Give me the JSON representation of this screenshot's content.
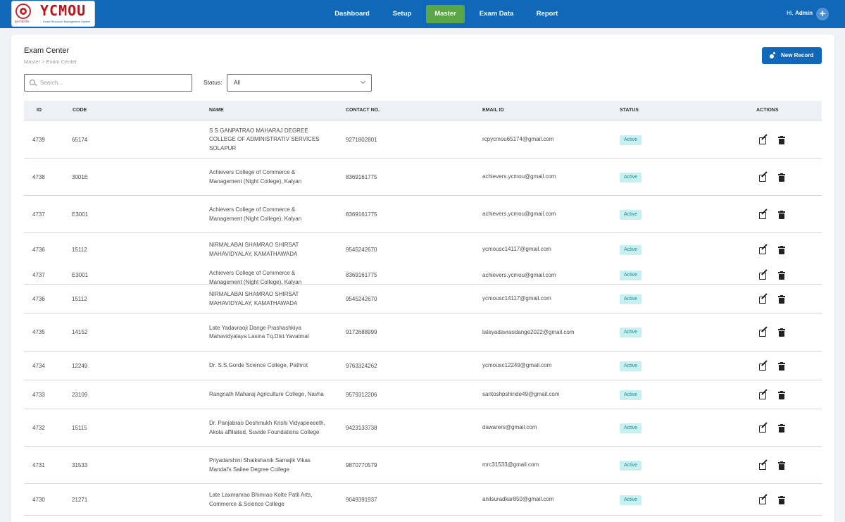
{
  "app": {
    "logo_text": "YCMOU",
    "logo_subtext": "मुक्त विद्यापीठ",
    "logo_tagline": "Exam Resource Management System"
  },
  "nav": {
    "items": [
      {
        "label": "Dashboard"
      },
      {
        "label": "Setup"
      },
      {
        "label": "Master"
      },
      {
        "label": "Exam Data"
      },
      {
        "label": "Report"
      }
    ],
    "active": "Master",
    "greeting": "Hi,",
    "user": "Admin"
  },
  "page": {
    "title": "Exam Center",
    "breadcrumb": "Master > Exam Center",
    "new_record_label": "New Record"
  },
  "filters": {
    "search_placeholder": "Search...",
    "status_label": "Status:",
    "status_value": "All"
  },
  "table": {
    "headers": {
      "id": "ID",
      "code": "CODE",
      "name": "NAME",
      "contact": "CONTACT NO.",
      "email": "EMAIL ID",
      "status": "STATUS",
      "actions": "ACTIONS"
    },
    "rows": [
      {
        "id": "4739",
        "code": "65174",
        "name": "S S GANPATRAO MAHARAJ DEGREE COLLEGE OF ADMINISTRATIV SERVICES SOLAPUR",
        "contact": "9271802801",
        "email": "rcpycmou65174@gmail.com",
        "status": "Active"
      },
      {
        "id": "4738",
        "code": "3001E",
        "name": "Achievers College of Commerce & Management (Night College), Kalyan",
        "contact": "8369161775",
        "email": "achievers.ycmou@gmail.com",
        "status": "Active"
      },
      {
        "id": "4737",
        "code": "E3001",
        "name": "Achievers College of Commerce & Management (Night College), Kalyan",
        "contact": "8369161775",
        "email": "achievers.ycmou@gmail.com",
        "status": "Active"
      },
      {
        "id": "4736",
        "code": "15112",
        "name": "NIRMALABAI SHAMRAO SHIRSAT MAHAVIDYALAY, KAMATHAWADA",
        "contact": "9545242670",
        "email": "ycmousc14117@gmail.com",
        "status": "Active"
      },
      {
        "id": "4737",
        "code": "E3001",
        "name": "Achievers College of Commerce & Management (Night College), Kalyan",
        "contact": "8369161775",
        "email": "achievers.ycmou@gmail.com",
        "status": "Active"
      },
      {
        "id": "4736",
        "code": "15112",
        "name": "NIRMALABAI SHAMRAO SHIRSAT MAHAVIDYALAY, KAMATHAWADA",
        "contact": "9545242670",
        "email": "ycmousc14117@gmail.com",
        "status": "Active"
      },
      {
        "id": "4735",
        "code": "14152",
        "name": "Late Yadavraoji Dange Prashashkiya Mahavidyalaya Lasina Tq.Dist.Yavatmal",
        "contact": "9172688999",
        "email": "lateyadavraodange2022@gmail.com",
        "status": "Active"
      },
      {
        "id": "4734",
        "code": "12249",
        "name": "Dr. S.S.Gorde Science College, Pathrot",
        "contact": "9763324262",
        "email": "ycmousc12249@gmail.com",
        "status": "Active"
      },
      {
        "id": "4733",
        "code": "23109",
        "name": "Rangnath Maharaj Agriculture College, Navha",
        "contact": "9579312206",
        "email": "santoshpshinde49@gmail.com",
        "status": "Active"
      },
      {
        "id": "4732",
        "code": "15115",
        "name": "Dr. Panjabrao Deshmukh Krishi Vidyapeeeeth, Akola affiliated, Suvide Foundations College",
        "contact": "9423133738",
        "email": "dawarers@gmail.com",
        "status": "Active"
      },
      {
        "id": "4731",
        "code": "31533",
        "name": "Priyadarshini Shaikshanik Samajik Vikas Mandal's Sailee Degree College",
        "contact": "9870770579",
        "email": "mrc31533@gmail.com",
        "status": "Active"
      },
      {
        "id": "4730",
        "code": "21271",
        "name": "Late Laxmanrao Bhimrao Kolte Patil Arts, Commerce & Science College",
        "contact": "9049391937",
        "email": "anilsuradkar850@gmail.com",
        "status": "Active"
      }
    ]
  }
}
